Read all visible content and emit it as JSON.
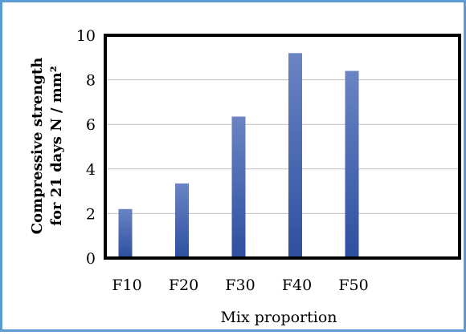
{
  "chart_data": {
    "type": "bar",
    "categories": [
      "F10",
      "F20",
      "F30",
      "F40",
      "F50"
    ],
    "values": [
      2.2,
      3.35,
      6.35,
      9.2,
      8.4
    ],
    "title": "",
    "xlabel": "Mix proportion",
    "ylabel_line1": "Compressive strength",
    "ylabel_line2": "for 21 days N / mm²",
    "ylim": [
      0,
      10
    ],
    "yticks": [
      0,
      2,
      4,
      6,
      8,
      10
    ],
    "grid": true,
    "legend": "none",
    "colors": {
      "frame_border": "#5b9bd5",
      "bar_light": "#6a84c4",
      "bar_dark": "#2e4fa0",
      "plot_border": "#000000",
      "grid": "#bfbfbf"
    }
  }
}
